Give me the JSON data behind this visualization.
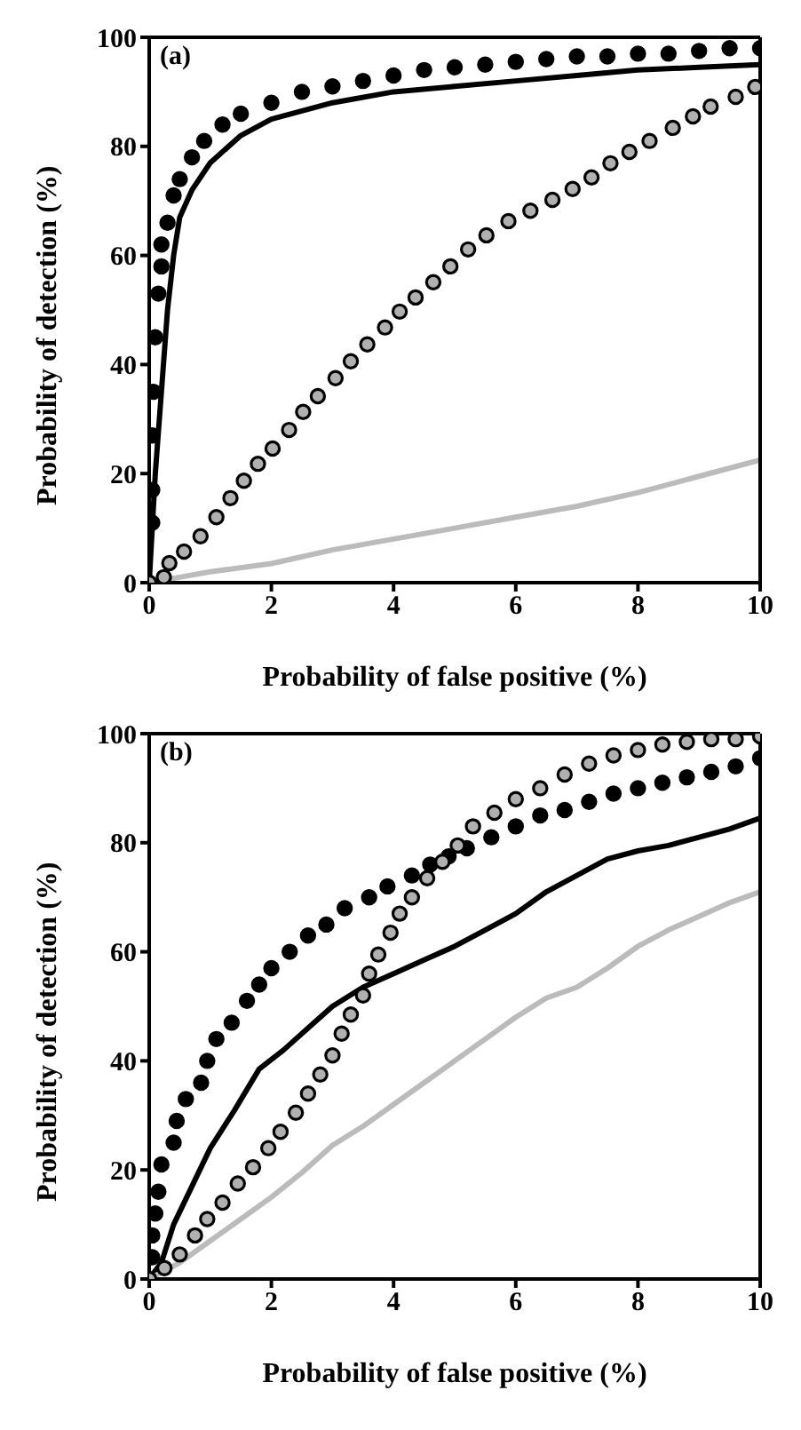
{
  "chart_data": [
    {
      "type": "line",
      "xlabel": "Probability of false positive (%)",
      "ylabel": "Probability of detection (%)",
      "annotations": [
        "(a)"
      ],
      "xlim": [
        0,
        10
      ],
      "xticks": [
        0,
        2,
        4,
        6,
        8,
        10
      ],
      "ylim": [
        0,
        100
      ],
      "yticks": [
        0,
        20,
        40,
        60,
        80,
        100
      ],
      "grid": false,
      "legend": false,
      "series": [
        {
          "type": "scatter",
          "marker": "circle",
          "color": "#000000",
          "x": [
            0.05,
            0.05,
            0.05,
            0.07,
            0.1,
            0.15,
            0.2,
            0.2,
            0.3,
            0.4,
            0.5,
            0.7,
            0.9,
            1.2,
            1.5,
            2,
            2.5,
            3,
            3.5,
            4,
            4.5,
            5,
            5.5,
            6,
            6.5,
            7,
            7.5,
            8,
            8.5,
            9,
            9.5,
            10
          ],
          "values": [
            11,
            17,
            27,
            35,
            45,
            53,
            58,
            62,
            66,
            71,
            74,
            78,
            81,
            84,
            86,
            88,
            90,
            91,
            92,
            93,
            94,
            94.5,
            95,
            95.5,
            96,
            96.5,
            96.5,
            97,
            97,
            97.5,
            98,
            98
          ]
        },
        {
          "marker": "none",
          "line_style": "solid",
          "color": "#000000",
          "x": [
            0,
            0.1,
            0.2,
            0.3,
            0.4,
            0.5,
            0.7,
            1,
            1.5,
            2,
            3,
            4,
            5,
            6,
            7,
            8,
            9,
            10
          ],
          "values": [
            0,
            20,
            35,
            50,
            60,
            67,
            72,
            77,
            82,
            85,
            88,
            90,
            91,
            92,
            93,
            94,
            94.5,
            95
          ]
        },
        {
          "type": "scatter",
          "marker": "circle",
          "color": "#b0b0b0",
          "x": [
            0,
            0.24,
            0.33,
            0.57,
            0.84,
            1.1,
            1.33,
            1.55,
            1.78,
            2.02,
            2.29,
            2.52,
            2.76,
            3.05,
            3.3,
            3.57,
            3.86,
            4.1,
            4.36,
            4.65,
            4.93,
            5.22,
            5.52,
            5.88,
            6.24,
            6.6,
            6.93,
            7.24,
            7.55,
            7.86,
            8.19,
            8.57,
            8.9,
            9.19,
            9.6,
            9.92
          ],
          "values": [
            0,
            1,
            3.6,
            5.7,
            8.5,
            12,
            15.5,
            18.7,
            21.8,
            24.6,
            28,
            31.3,
            34.2,
            37.5,
            40.6,
            43.7,
            46.8,
            49.7,
            52.3,
            55.1,
            58,
            61.1,
            63.7,
            66.3,
            68.2,
            70.2,
            72.2,
            74.3,
            76.9,
            79,
            81,
            83.4,
            85.5,
            87.3,
            89.1,
            90.9
          ]
        },
        {
          "marker": "none",
          "line_style": "solid",
          "color": "#bbbbbb",
          "x": [
            0,
            0.5,
            1,
            2,
            3,
            4,
            5,
            6,
            7,
            8,
            9,
            10
          ],
          "values": [
            0,
            1,
            2,
            3.5,
            6,
            8,
            10,
            12,
            14,
            16.5,
            19.5,
            22.5
          ]
        }
      ]
    },
    {
      "type": "line",
      "xlabel": "Probability of false positive (%)",
      "ylabel": "Probability of detection (%)",
      "annotations": [
        "(b)"
      ],
      "xlim": [
        0,
        10
      ],
      "xticks": [
        0,
        2,
        4,
        6,
        8,
        10
      ],
      "ylim": [
        0,
        100
      ],
      "yticks": [
        0,
        20,
        40,
        60,
        80,
        100
      ],
      "grid": false,
      "legend": false,
      "series": [
        {
          "type": "scatter",
          "marker": "circle",
          "color": "#000000",
          "x": [
            0.05,
            0.05,
            0.1,
            0.15,
            0.2,
            0.4,
            0.45,
            0.6,
            0.85,
            0.95,
            1.1,
            1.35,
            1.6,
            1.8,
            2,
            2.3,
            2.6,
            2.9,
            3.2,
            3.6,
            3.9,
            4.3,
            4.6,
            4.9,
            5.2,
            5.6,
            6,
            6.4,
            6.8,
            7.2,
            7.6,
            8,
            8.4,
            8.8,
            9.2,
            9.6,
            10
          ],
          "values": [
            4,
            8,
            12,
            16,
            21,
            25,
            29,
            33,
            36,
            40,
            44,
            47,
            51,
            54,
            57,
            60,
            63,
            65,
            68,
            70,
            72,
            74,
            76,
            77.5,
            79,
            81,
            83,
            85,
            86,
            87.5,
            89,
            90,
            91,
            92,
            93,
            94,
            95.5
          ]
        },
        {
          "marker": "none",
          "line_style": "solid",
          "color": "#000000",
          "x": [
            0,
            0.2,
            0.4,
            0.7,
            1,
            1.4,
            1.8,
            2.2,
            2.6,
            3,
            3.5,
            4,
            4.5,
            5,
            5.5,
            6,
            6.5,
            7,
            7.5,
            8,
            8.5,
            9,
            9.5,
            10
          ],
          "values": [
            0,
            3,
            10,
            17,
            24,
            31,
            38.5,
            42,
            46,
            50,
            53.5,
            56,
            58.5,
            61,
            64,
            67,
            71,
            74,
            77,
            78.5,
            79.5,
            81,
            82.5,
            84.5
          ]
        },
        {
          "type": "scatter",
          "marker": "circle",
          "color": "#b0b0b0",
          "x": [
            0,
            0.25,
            0.5,
            0.75,
            0.95,
            1.2,
            1.45,
            1.7,
            1.95,
            2.15,
            2.4,
            2.6,
            2.8,
            3,
            3.15,
            3.3,
            3.5,
            3.6,
            3.75,
            3.95,
            4.1,
            4.3,
            4.55,
            4.8,
            5.05,
            5.3,
            5.65,
            6,
            6.4,
            6.8,
            7.2,
            7.6,
            8,
            8.4,
            8.8,
            9.2,
            9.6,
            10
          ],
          "values": [
            0,
            2,
            4.5,
            8,
            11,
            14,
            17.5,
            20.5,
            24,
            27,
            30.5,
            34,
            37.5,
            41,
            45,
            48.5,
            52,
            56,
            59.5,
            63.5,
            67,
            70,
            73.5,
            76.5,
            79.5,
            83,
            85.5,
            88,
            90,
            92.5,
            94.5,
            96,
            97,
            98,
            98.5,
            99,
            99,
            99.5
          ]
        },
        {
          "marker": "none",
          "line_style": "solid",
          "color": "#bbbbbb",
          "x": [
            0,
            0.5,
            1,
            1.5,
            2,
            2.5,
            3,
            3.5,
            4,
            4.5,
            5,
            5.5,
            6,
            6.5,
            7,
            7.5,
            8,
            8.5,
            9,
            9.5,
            10
          ],
          "values": [
            0,
            3,
            7,
            11,
            15,
            19.5,
            24.5,
            28,
            32,
            36,
            40,
            44,
            48,
            51.5,
            53.5,
            57,
            61,
            64,
            66.5,
            69,
            71
          ]
        }
      ]
    }
  ]
}
